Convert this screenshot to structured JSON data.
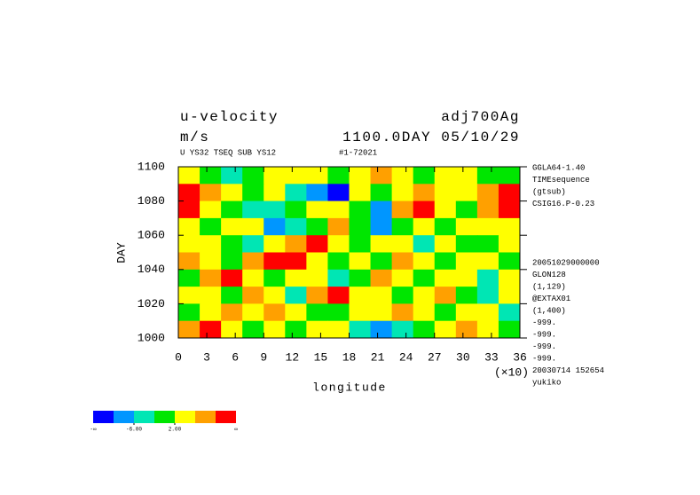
{
  "chart_data": {
    "type": "heatmap",
    "title": "u-velocity",
    "run_name": "adj700Ag",
    "units": "m/s",
    "time_label": "1100.0DAY 05/10/29",
    "subtitle": "U YS32 TSEQ SUB YS12",
    "run_id": "#1-72021",
    "x_label": "longitude",
    "x_multiplier": "(×10)",
    "y_label": "DAY",
    "xlim": [
      0,
      36
    ],
    "xticks": [
      0,
      3,
      6,
      9,
      12,
      15,
      18,
      21,
      24,
      27,
      30,
      33,
      36
    ],
    "ylim": [
      1000,
      1100
    ],
    "yticks": [
      1000,
      1020,
      1040,
      1060,
      1080,
      1100
    ],
    "values": [
      [
        4,
        0,
        -3,
        1,
        3,
        5,
        2,
        -1,
        3,
        6,
        2,
        0,
        4,
        3,
        1,
        -2
      ],
      [
        12,
        8,
        3,
        -2,
        5,
        -4,
        -8,
        -11,
        3,
        1,
        5,
        7,
        2,
        4,
        8,
        11
      ],
      [
        11,
        4,
        1,
        -3,
        -6,
        -2,
        4,
        2,
        -1,
        -7,
        9,
        12,
        3,
        0,
        6,
        12
      ],
      [
        2,
        -1,
        5,
        3,
        -7,
        -3,
        1,
        6,
        -2,
        -9,
        1,
        4,
        -1,
        3,
        5,
        2
      ],
      [
        3,
        5,
        1,
        -4,
        2,
        8,
        11,
        3,
        0,
        5,
        2,
        -3,
        4,
        1,
        -2,
        3
      ],
      [
        6,
        2,
        -2,
        7,
        11,
        12,
        5,
        1,
        3,
        -1,
        6,
        2,
        0,
        5,
        3,
        1
      ],
      [
        1,
        8,
        11,
        3,
        -1,
        2,
        4,
        -3,
        1,
        7,
        3,
        -2,
        5,
        2,
        -6,
        4
      ],
      [
        5,
        3,
        1,
        7,
        2,
        -4,
        6,
        10,
        2,
        4,
        -1,
        3,
        8,
        1,
        -3,
        2
      ],
      [
        -1,
        4,
        6,
        2,
        8,
        3,
        1,
        -2,
        5,
        3,
        7,
        2,
        -1,
        4,
        2,
        -5
      ],
      [
        7,
        11,
        5,
        1,
        3,
        -2,
        4,
        2,
        -5,
        -8,
        -3,
        1,
        3,
        6,
        2,
        -2
      ]
    ],
    "levels": [
      -10,
      -6,
      -2,
      2,
      6,
      10
    ],
    "colors": [
      "#0000ff",
      "#0096ff",
      "#00e6b4",
      "#00e600",
      "#ffff00",
      "#ffa000",
      "#ff0000"
    ],
    "colorbar_low": "-∞",
    "colorbar_high": "∞",
    "colorbar_ticks": [
      {
        "value": -6,
        "label": "-6.00"
      },
      {
        "value": 2,
        "label": "2.00"
      }
    ],
    "info_top": [
      "GGLA64-1.40",
      "TIMEsequence",
      "(gtsub)",
      "CSIG16.P-0.23"
    ],
    "info_bottom": [
      "20051029000000",
      "GLON128",
      "(1,129)",
      "@EXTAX01",
      "(1,400)",
      "-999.",
      "-999.",
      "-999.",
      "-999.",
      "20030714 152654",
      "yukiko"
    ]
  }
}
